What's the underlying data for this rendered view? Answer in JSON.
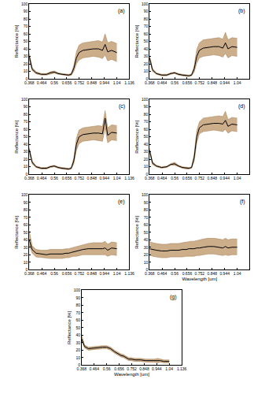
{
  "chart_data": [
    {
      "type": "line",
      "label": "(a)",
      "ylabel": "Reflectance [%]",
      "color": "#000000",
      "x": [
        0.368,
        0.39,
        0.42,
        0.46,
        0.5,
        0.53,
        0.56,
        0.59,
        0.62,
        0.65,
        0.67,
        0.69,
        0.71,
        0.73,
        0.75,
        0.78,
        0.82,
        0.86,
        0.9,
        0.93,
        0.95,
        0.97,
        1.0,
        1.04
      ],
      "values": [
        30,
        13,
        8,
        6,
        6,
        8,
        9,
        7,
        6,
        5,
        5,
        6,
        14,
        28,
        35,
        38,
        39,
        40,
        40,
        38,
        46,
        36,
        38,
        35
      ],
      "lower": [
        26,
        11,
        6.5,
        5,
        5,
        6.5,
        7.5,
        6,
        5,
        4,
        4,
        4.5,
        10,
        20,
        25,
        28,
        29,
        30,
        29,
        27,
        32,
        24,
        26,
        23
      ],
      "upper": [
        34,
        15,
        9.5,
        7,
        7,
        9.5,
        10.5,
        8,
        7,
        6,
        6,
        7.5,
        18,
        36,
        45,
        48,
        49,
        50,
        51,
        49,
        60,
        48,
        50,
        47
      ],
      "xlim": [
        0.368,
        1.136
      ],
      "ylim": [
        0,
        100
      ],
      "xticks": [
        0.368,
        0.464,
        0.56,
        0.656,
        0.752,
        0.848,
        0.944,
        1.04,
        1.136
      ],
      "yticks": [
        0,
        10,
        20,
        30,
        40,
        50,
        60,
        70,
        80,
        90,
        100
      ]
    },
    {
      "type": "line",
      "label": "(b)",
      "ylabel": "Reflectance [%]",
      "color": "#000000",
      "x": [
        0.368,
        0.39,
        0.42,
        0.46,
        0.5,
        0.53,
        0.56,
        0.59,
        0.62,
        0.65,
        0.67,
        0.69,
        0.71,
        0.73,
        0.75,
        0.78,
        0.82,
        0.86,
        0.9,
        0.93,
        0.95,
        0.97,
        1.0,
        1.04
      ],
      "values": [
        28,
        12,
        7,
        5,
        5,
        7,
        8,
        6,
        5,
        4,
        4,
        5,
        13,
        30,
        38,
        41,
        42,
        43,
        43,
        41,
        48,
        40,
        43,
        42
      ],
      "lower": [
        25,
        10,
        6,
        4,
        4,
        6,
        7,
        5,
        4,
        3,
        3,
        4,
        9,
        21,
        28,
        30,
        31,
        32,
        31,
        29,
        34,
        28,
        31,
        30
      ],
      "upper": [
        31,
        14,
        8,
        6,
        6,
        8,
        9,
        7,
        6,
        5,
        5,
        6,
        17,
        39,
        48,
        52,
        53,
        54,
        55,
        53,
        62,
        52,
        55,
        54
      ],
      "xlim": [
        0.368,
        1.136
      ],
      "ylim": [
        0,
        100
      ],
      "xticks": [
        0.368,
        0.464,
        0.56,
        0.656,
        0.752,
        0.848,
        0.944,
        1.04,
        1.136
      ],
      "yticks": [
        0,
        10,
        20,
        30,
        40,
        50,
        60,
        70,
        80,
        90,
        100
      ]
    },
    {
      "type": "line",
      "label": "(c)",
      "ylabel": "Reflectance [%]",
      "color": "#000000",
      "x": [
        0.368,
        0.39,
        0.42,
        0.46,
        0.5,
        0.53,
        0.56,
        0.59,
        0.62,
        0.65,
        0.67,
        0.69,
        0.71,
        0.73,
        0.75,
        0.78,
        0.82,
        0.86,
        0.9,
        0.93,
        0.95,
        0.97,
        1.0,
        1.04
      ],
      "values": [
        33,
        16,
        10,
        8,
        8,
        10,
        11,
        9,
        8,
        7,
        7,
        8,
        18,
        40,
        50,
        53,
        54,
        55,
        55,
        54,
        75,
        52,
        56,
        55
      ],
      "lower": [
        30,
        14,
        9,
        7,
        7,
        9,
        10,
        8,
        7,
        6,
        6,
        7,
        14,
        32,
        41,
        44,
        45,
        46,
        45,
        44,
        62,
        42,
        46,
        45
      ],
      "upper": [
        36,
        18,
        11,
        9,
        9,
        11,
        12,
        10,
        9,
        8,
        8,
        9,
        22,
        48,
        59,
        62,
        63,
        64,
        65,
        64,
        85,
        62,
        66,
        65
      ],
      "xlim": [
        0.368,
        1.136
      ],
      "ylim": [
        0,
        100
      ],
      "xticks": [
        0.368,
        0.464,
        0.56,
        0.656,
        0.752,
        0.848,
        0.944,
        1.04,
        1.136
      ],
      "yticks": [
        0,
        10,
        20,
        30,
        40,
        50,
        60,
        70,
        80,
        90,
        100
      ]
    },
    {
      "type": "line",
      "label": "(d)",
      "ylabel": "Reflectance [%]",
      "color": "#000000",
      "x": [
        0.368,
        0.39,
        0.42,
        0.46,
        0.5,
        0.53,
        0.56,
        0.59,
        0.62,
        0.65,
        0.67,
        0.69,
        0.71,
        0.73,
        0.75,
        0.78,
        0.82,
        0.86,
        0.9,
        0.93,
        0.95,
        0.97,
        1.0,
        1.04
      ],
      "values": [
        32,
        15,
        11,
        9,
        10,
        13,
        14,
        11,
        9,
        8,
        8,
        9,
        22,
        50,
        62,
        66,
        67,
        68,
        68,
        67,
        72,
        64,
        67,
        66
      ],
      "lower": [
        29,
        13,
        10,
        8,
        9,
        12,
        12,
        10,
        8,
        7,
        7,
        8,
        17,
        42,
        54,
        57,
        58,
        59,
        58,
        57,
        60,
        55,
        58,
        57
      ],
      "upper": [
        35,
        17,
        12,
        10,
        11,
        14,
        16,
        12,
        10,
        9,
        9,
        10,
        27,
        58,
        70,
        75,
        76,
        77,
        78,
        77,
        84,
        73,
        76,
        75
      ],
      "xlim": [
        0.368,
        1.136
      ],
      "ylim": [
        0,
        100
      ],
      "xticks": [
        0.368,
        0.464,
        0.56,
        0.656,
        0.752,
        0.848,
        0.944,
        1.04,
        1.136
      ],
      "yticks": [
        0,
        10,
        20,
        30,
        40,
        50,
        60,
        70,
        80,
        90,
        100
      ]
    },
    {
      "type": "line",
      "label": "(e)",
      "ylabel": "Reflectance [%]",
      "color": "#000000",
      "x": [
        0.368,
        0.39,
        0.42,
        0.46,
        0.5,
        0.53,
        0.56,
        0.59,
        0.62,
        0.65,
        0.67,
        0.69,
        0.71,
        0.73,
        0.75,
        0.78,
        0.82,
        0.86,
        0.9,
        0.93,
        0.95,
        0.97,
        1.0,
        1.04
      ],
      "values": [
        40,
        27,
        22,
        21,
        20,
        21,
        21,
        21,
        21,
        22,
        22,
        23,
        24,
        25,
        26,
        27,
        28,
        28,
        28,
        28,
        29,
        26,
        29,
        28
      ],
      "lower": [
        33,
        22,
        17,
        16,
        15,
        15,
        15,
        15,
        15,
        16,
        16,
        17,
        18,
        18,
        19,
        20,
        20,
        20,
        20,
        20,
        20,
        18,
        20,
        19
      ],
      "upper": [
        52,
        32,
        27,
        26,
        26,
        27,
        27,
        27,
        27,
        28,
        28,
        29,
        30,
        31,
        32,
        33,
        35,
        36,
        36,
        36,
        38,
        34,
        37,
        36
      ],
      "xlim": [
        0.368,
        1.136
      ],
      "ylim": [
        0,
        100
      ],
      "xticks": [
        0.368,
        0.464,
        0.56,
        0.656,
        0.752,
        0.848,
        0.944,
        1.04,
        1.136
      ],
      "yticks": [
        0,
        10,
        20,
        30,
        40,
        50,
        60,
        70,
        80,
        90,
        100
      ]
    },
    {
      "type": "line",
      "label": "(f)",
      "ylabel": "Reflectance [%]",
      "xlabel": "Wavelength [um]",
      "color": "#000000",
      "x": [
        0.368,
        0.39,
        0.42,
        0.46,
        0.5,
        0.53,
        0.56,
        0.59,
        0.62,
        0.65,
        0.67,
        0.69,
        0.71,
        0.73,
        0.75,
        0.78,
        0.82,
        0.86,
        0.9,
        0.93,
        0.95,
        0.97,
        1.0,
        1.04
      ],
      "values": [
        28,
        27,
        26,
        25,
        25,
        26,
        26,
        26,
        27,
        27,
        28,
        28,
        28,
        29,
        29,
        30,
        31,
        31,
        30,
        29,
        31,
        29,
        30,
        30
      ],
      "lower": [
        20,
        18,
        17,
        16,
        16,
        17,
        17,
        17,
        17,
        18,
        18,
        18,
        18,
        19,
        19,
        20,
        21,
        21,
        20,
        19,
        20,
        19,
        20,
        20
      ],
      "upper": [
        38,
        36,
        35,
        34,
        34,
        35,
        35,
        35,
        36,
        37,
        37,
        38,
        38,
        39,
        40,
        41,
        42,
        42,
        41,
        40,
        42,
        40,
        41,
        41
      ],
      "xlim": [
        0.368,
        1.136
      ],
      "ylim": [
        0,
        100
      ],
      "xticks": [
        0.368,
        0.464,
        0.56,
        0.656,
        0.752,
        0.848,
        0.944,
        1.04,
        1.136
      ],
      "yticks": [
        0,
        10,
        20,
        30,
        40,
        50,
        60,
        70,
        80,
        90,
        100
      ]
    },
    {
      "type": "line",
      "label": "(g)",
      "ylabel": "Reflectance [%]",
      "xlabel": "Wavelength [um]",
      "color": "#000000",
      "x": [
        0.368,
        0.39,
        0.42,
        0.46,
        0.5,
        0.53,
        0.56,
        0.59,
        0.62,
        0.65,
        0.67,
        0.69,
        0.71,
        0.73,
        0.75,
        0.78,
        0.82,
        0.86,
        0.9,
        0.93,
        0.95,
        0.97,
        1.0,
        1.04
      ],
      "values": [
        35,
        25,
        22,
        23,
        24,
        24,
        24,
        22,
        18,
        15,
        13,
        12,
        10,
        8,
        8,
        7,
        7,
        6,
        6,
        6,
        6,
        6,
        5,
        5
      ],
      "lower": [
        32,
        23,
        20,
        21,
        22,
        22,
        22,
        20,
        16,
        13,
        11,
        10,
        8,
        6,
        6,
        5,
        5,
        4,
        4,
        4,
        3,
        4,
        3,
        3
      ],
      "upper": [
        40,
        27,
        24,
        25,
        26,
        26,
        26,
        24,
        20,
        17,
        15,
        14,
        12,
        10,
        10,
        9,
        9,
        8,
        8,
        8,
        9,
        8,
        7,
        7
      ],
      "xlim": [
        0.368,
        1.136
      ],
      "ylim": [
        0,
        100
      ],
      "xticks": [
        0.368,
        0.464,
        0.56,
        0.656,
        0.752,
        0.848,
        0.944,
        1.04,
        1.136
      ],
      "yticks": [
        0,
        10,
        20,
        30,
        40,
        50,
        60,
        70,
        80,
        90,
        100
      ]
    }
  ]
}
